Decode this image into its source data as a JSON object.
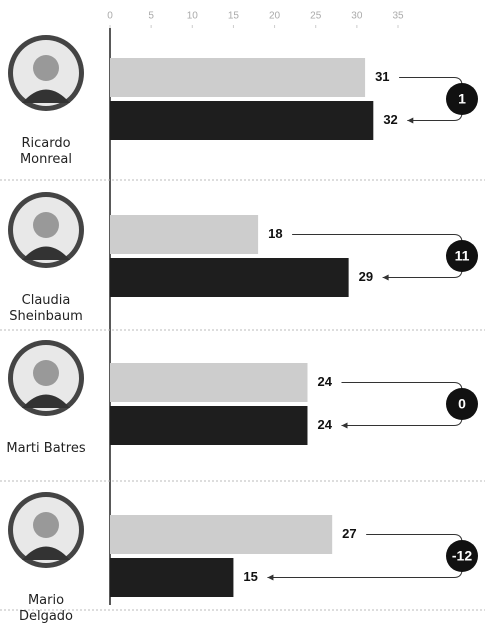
{
  "chart_data": {
    "type": "bar",
    "categories": [
      "Ricardo Monreal",
      "Claudia Sheinbaum",
      "Marti Batres",
      "Mario Delgado"
    ],
    "series": [
      {
        "color": "#cdcdcd",
        "values": [
          31,
          18,
          24,
          27
        ]
      },
      {
        "color": "#1e1e1e",
        "values": [
          32,
          29,
          24,
          15
        ]
      }
    ],
    "changes": [
      1,
      11,
      0,
      -12
    ],
    "xlim": [
      0,
      35
    ],
    "xticks": [
      0,
      5,
      10,
      15,
      20,
      25,
      30,
      35
    ]
  }
}
